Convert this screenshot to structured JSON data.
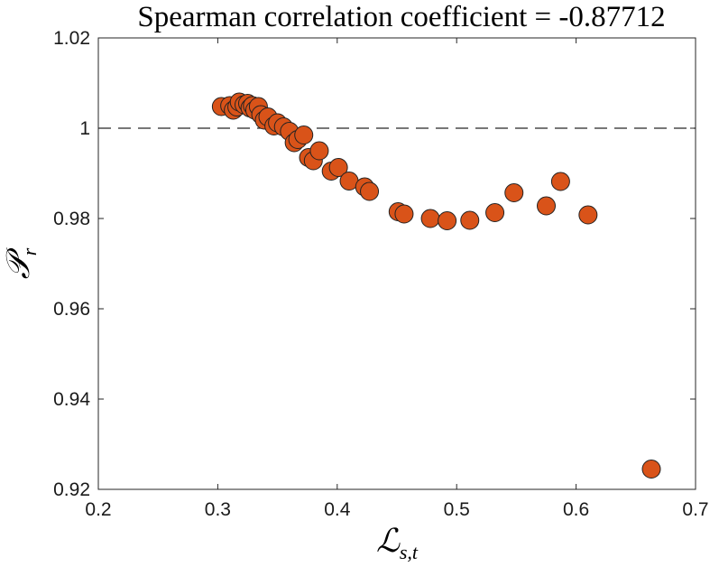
{
  "chart_data": {
    "type": "scatter",
    "title": "Spearman correlation coefficient = -0.87712",
    "xlabel": {
      "main": "ℒ",
      "sub": "s,t"
    },
    "ylabel": {
      "main": "𝒫",
      "sub": "r"
    },
    "xlim": [
      0.2,
      0.7
    ],
    "ylim": [
      0.92,
      1.02
    ],
    "xticks": [
      0.2,
      0.3,
      0.4,
      0.5,
      0.6,
      0.7
    ],
    "xtick_labels": [
      "0.2",
      "0.3",
      "0.4",
      "0.5",
      "0.6",
      "0.7"
    ],
    "yticks": [
      0.92,
      0.94,
      0.96,
      0.98,
      1.0,
      1.02
    ],
    "ytick_labels": [
      "0.92",
      "0.94",
      "0.96",
      "0.98",
      "1",
      "1.02"
    ],
    "reference_line": {
      "y": 1.0,
      "style": "dashed"
    },
    "grid": false,
    "marker_color": "#d95319",
    "marker_edge_color": "#222222",
    "points": [
      {
        "x": 0.303,
        "y": 1.0048
      },
      {
        "x": 0.31,
        "y": 1.005
      },
      {
        "x": 0.313,
        "y": 1.004
      },
      {
        "x": 0.316,
        "y": 1.0047
      },
      {
        "x": 0.318,
        "y": 1.0058
      },
      {
        "x": 0.322,
        "y": 1.0052
      },
      {
        "x": 0.325,
        "y": 1.0055
      },
      {
        "x": 0.327,
        "y": 1.0045
      },
      {
        "x": 0.329,
        "y": 1.005
      },
      {
        "x": 0.331,
        "y": 1.004
      },
      {
        "x": 0.334,
        "y": 1.0048
      },
      {
        "x": 0.336,
        "y": 1.003
      },
      {
        "x": 0.339,
        "y": 1.0018
      },
      {
        "x": 0.342,
        "y": 1.0025
      },
      {
        "x": 0.347,
        "y": 1.0005
      },
      {
        "x": 0.35,
        "y": 1.0012
      },
      {
        "x": 0.355,
        "y": 1.0003
      },
      {
        "x": 0.36,
        "y": 0.9993
      },
      {
        "x": 0.364,
        "y": 0.9968
      },
      {
        "x": 0.367,
        "y": 0.9975
      },
      {
        "x": 0.372,
        "y": 0.9985
      },
      {
        "x": 0.376,
        "y": 0.9935
      },
      {
        "x": 0.38,
        "y": 0.9928
      },
      {
        "x": 0.385,
        "y": 0.995
      },
      {
        "x": 0.395,
        "y": 0.9905
      },
      {
        "x": 0.401,
        "y": 0.9913
      },
      {
        "x": 0.41,
        "y": 0.9883
      },
      {
        "x": 0.423,
        "y": 0.987
      },
      {
        "x": 0.427,
        "y": 0.986
      },
      {
        "x": 0.451,
        "y": 0.9815
      },
      {
        "x": 0.456,
        "y": 0.981
      },
      {
        "x": 0.478,
        "y": 0.98
      },
      {
        "x": 0.492,
        "y": 0.9795
      },
      {
        "x": 0.511,
        "y": 0.9796
      },
      {
        "x": 0.532,
        "y": 0.9813
      },
      {
        "x": 0.548,
        "y": 0.9857
      },
      {
        "x": 0.575,
        "y": 0.9828
      },
      {
        "x": 0.587,
        "y": 0.9882
      },
      {
        "x": 0.61,
        "y": 0.9808
      },
      {
        "x": 0.663,
        "y": 0.9245
      }
    ]
  }
}
